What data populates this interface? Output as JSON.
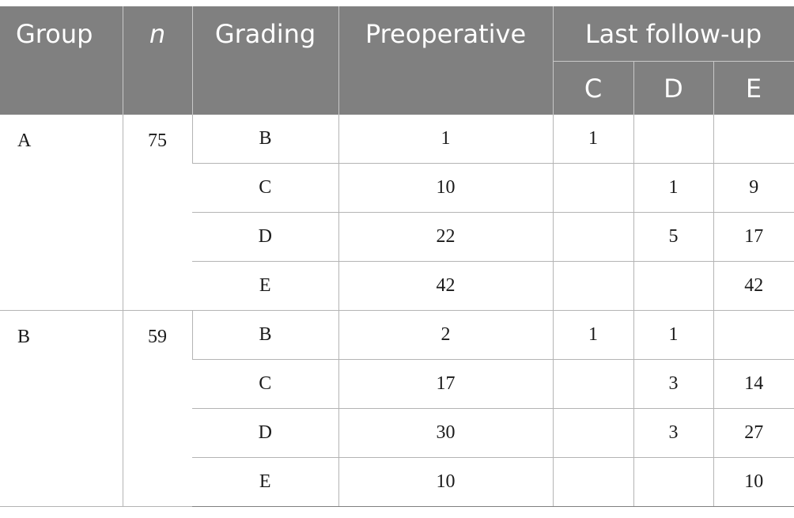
{
  "header": {
    "group": "Group",
    "n": "n",
    "grading": "Grading",
    "preoperative": "Preoperative",
    "last_follow_up": "Last follow-up",
    "sub": [
      "C",
      "D",
      "E"
    ]
  },
  "groups": [
    {
      "group": "A",
      "n": "75",
      "rows": [
        {
          "grading": "B",
          "preoperative": "1",
          "c": "1",
          "d": "",
          "e": ""
        },
        {
          "grading": "C",
          "preoperative": "10",
          "c": "",
          "d": "1",
          "e": "9"
        },
        {
          "grading": "D",
          "preoperative": "22",
          "c": "",
          "d": "5",
          "e": "17"
        },
        {
          "grading": "E",
          "preoperative": "42",
          "c": "",
          "d": "",
          "e": "42"
        }
      ]
    },
    {
      "group": "B",
      "n": "59",
      "rows": [
        {
          "grading": "B",
          "preoperative": "2",
          "c": "1",
          "d": "1",
          "e": ""
        },
        {
          "grading": "C",
          "preoperative": "17",
          "c": "",
          "d": "3",
          "e": "14"
        },
        {
          "grading": "D",
          "preoperative": "30",
          "c": "",
          "d": "3",
          "e": "27"
        },
        {
          "grading": "E",
          "preoperative": "10",
          "c": "",
          "d": "",
          "e": "10"
        }
      ]
    }
  ]
}
